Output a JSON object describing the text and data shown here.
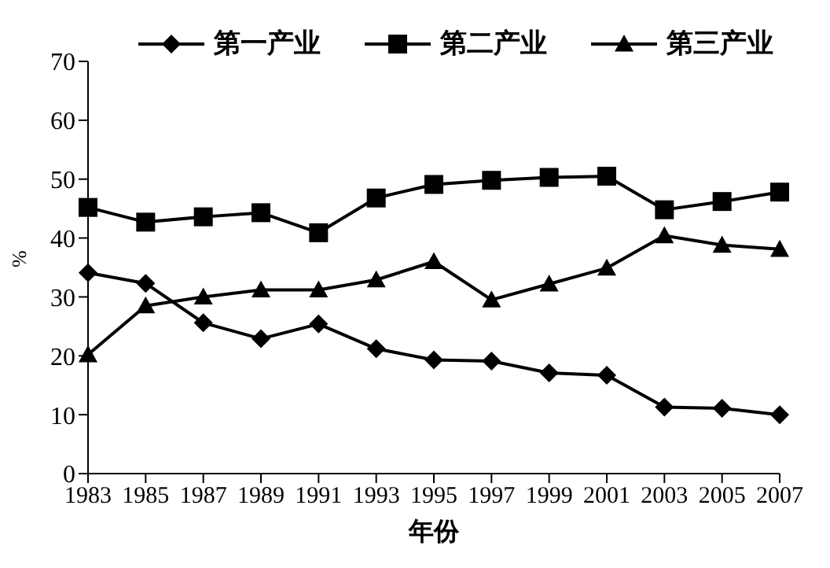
{
  "chart_data": {
    "type": "line",
    "xlabel": "年份",
    "ylabel": "%",
    "categories": [
      "1983",
      "1985",
      "1987",
      "1989",
      "1991",
      "1993",
      "1995",
      "1997",
      "1999",
      "2001",
      "2003",
      "2005",
      "2007"
    ],
    "ylim": [
      0,
      70
    ],
    "yticks": [
      0,
      10,
      20,
      30,
      40,
      50,
      60,
      70
    ],
    "grid": false,
    "legend": "top",
    "series": [
      {
        "name": "第一产业",
        "color": "#000000",
        "marker": "diamond",
        "values": [
          34.1,
          32.3,
          25.6,
          22.9,
          25.4,
          21.2,
          19.3,
          19.1,
          17.1,
          16.7,
          11.3,
          11.1,
          10
        ]
      },
      {
        "name": "第二产业",
        "color": "#000000",
        "marker": "square",
        "values": [
          45.2,
          42.7,
          43.6,
          44.3,
          40.9,
          46.8,
          49.1,
          49.8,
          50.3,
          50.5,
          44.8,
          46.2,
          47.8
        ]
      },
      {
        "name": "第三产业",
        "color": "#000000",
        "marker": "triangle",
        "values": [
          20.2,
          28.5,
          30,
          31.2,
          31.2,
          32.9,
          36,
          29.5,
          32.2,
          34.9,
          40.4,
          38.8,
          38.1
        ]
      }
    ]
  }
}
